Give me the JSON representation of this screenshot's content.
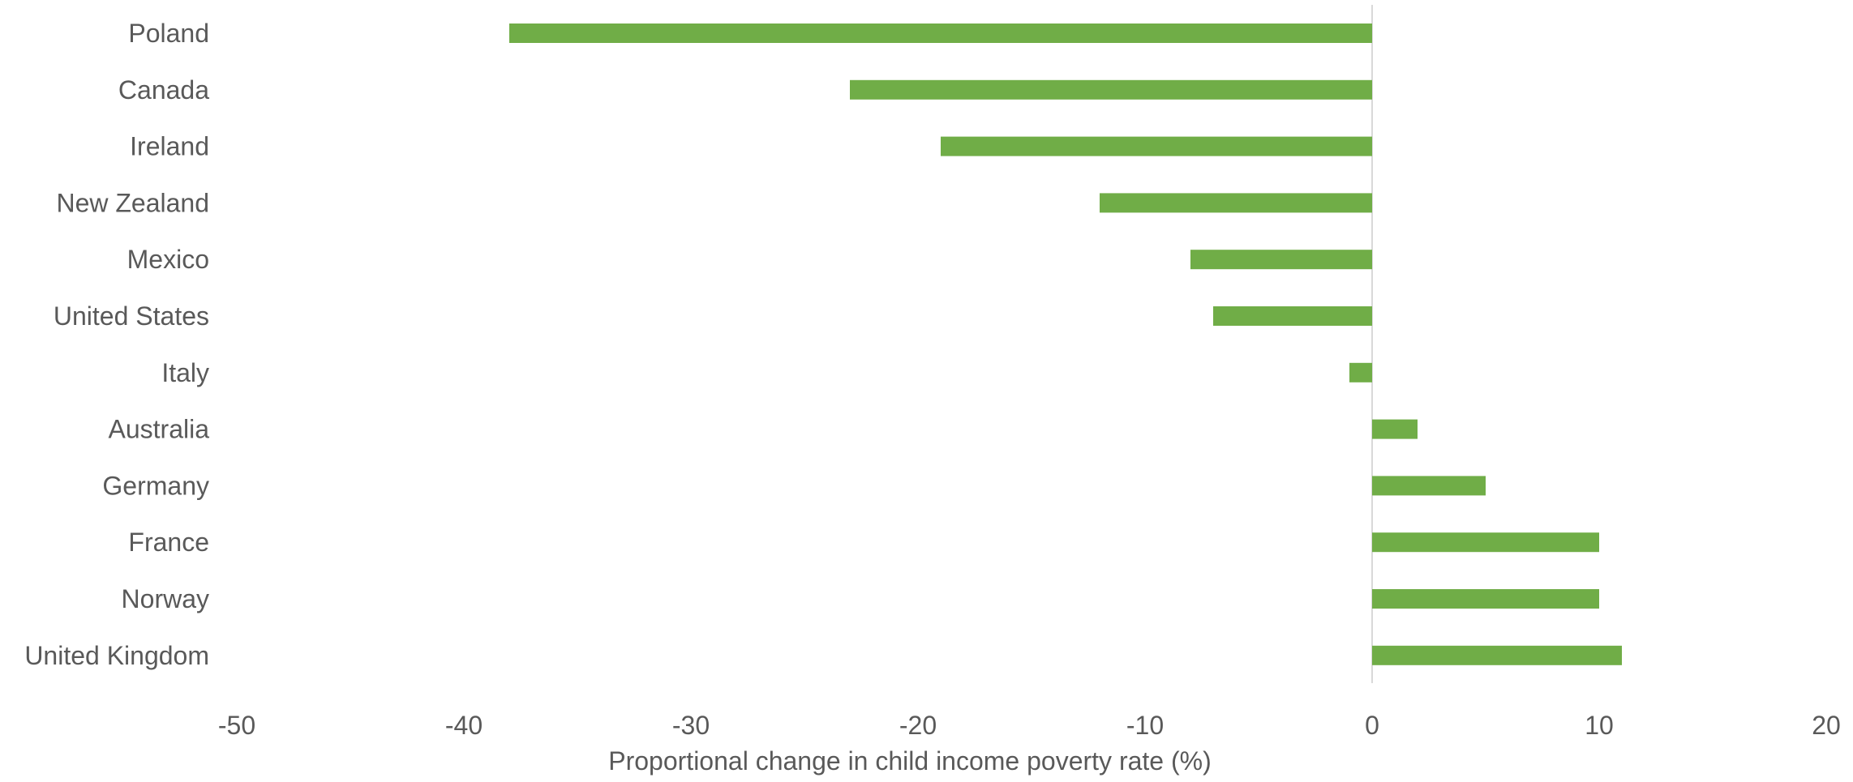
{
  "chart_data": {
    "type": "bar",
    "orientation": "horizontal",
    "categories": [
      "Poland",
      "Canada",
      "Ireland",
      "New Zealand",
      "Mexico",
      "United States",
      "Italy",
      "Australia",
      "Germany",
      "France",
      "Norway",
      "United Kingdom"
    ],
    "values": [
      -38,
      -23,
      -19,
      -12,
      -8,
      -7,
      -1,
      2,
      5,
      10,
      10,
      11
    ],
    "xlabel": "Proportional change in child income poverty rate (%)",
    "xlim": [
      -50,
      20
    ],
    "xticks": [
      -50,
      -40,
      -30,
      -20,
      -10,
      0,
      10,
      20
    ],
    "xtick_labels": [
      "-50",
      "-40",
      "-30",
      "-20",
      "-10",
      "0",
      "10",
      "20"
    ],
    "grid": false,
    "legend": "none",
    "bar_color": "#70ad47",
    "zero_line_color": "#d9d9d9"
  }
}
